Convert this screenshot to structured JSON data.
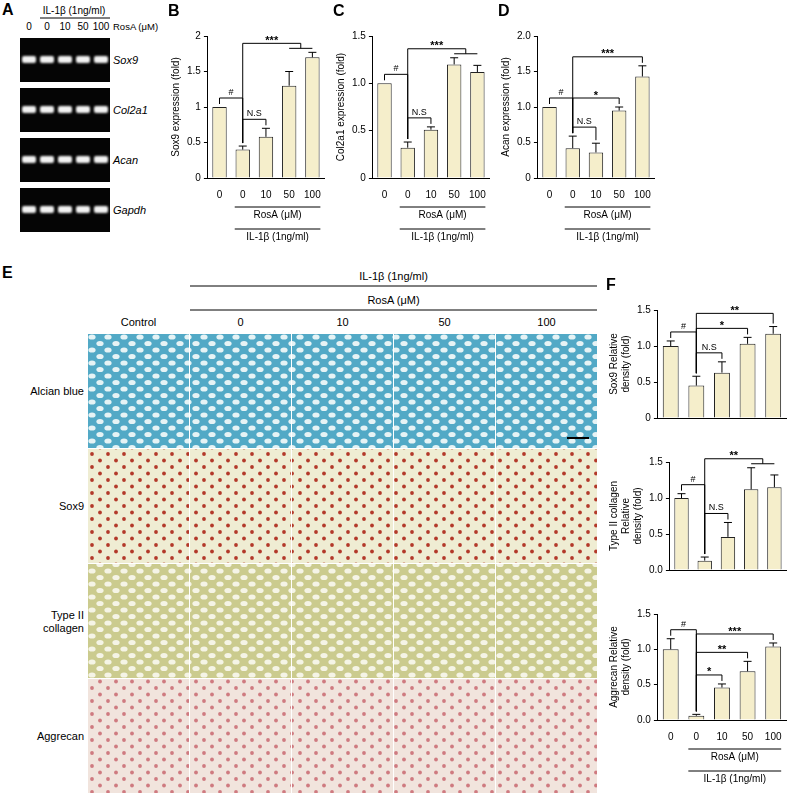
{
  "panels": {
    "A": {
      "label": "A",
      "top_label": "IL-1β (1ng/ml)",
      "axis_label": "RosA (μM)",
      "lanes": [
        "0",
        "0",
        "10",
        "50",
        "100"
      ],
      "genes": [
        "Sox9",
        "Col2a1",
        "Acan",
        "Gapdh"
      ]
    },
    "E": {
      "label": "E",
      "top_label": "IL-1β (1ng/ml)",
      "sub_label": "RosA (μM)",
      "columns": [
        "Control",
        "0",
        "10",
        "50",
        "100"
      ],
      "rows": [
        [
          "Alcian blue"
        ],
        [
          "Sox9"
        ],
        [
          "Type II",
          "collagen"
        ],
        [
          "Aggrecan"
        ]
      ]
    }
  },
  "chart_data": [
    {
      "type": "bar",
      "panel_label": "B",
      "ylabel": "Sox9 expression (fold)",
      "categories": [
        "0",
        "0",
        "10",
        "50",
        "100"
      ],
      "values": [
        1.0,
        0.4,
        0.58,
        1.3,
        1.7
      ],
      "errors": [
        0,
        0.05,
        0.12,
        0.2,
        0.07
      ],
      "color": "#f5eecb",
      "ylim": [
        0,
        2
      ],
      "yticks": [
        0,
        0.5,
        1,
        1.5,
        2
      ],
      "grid": false,
      "x_groups": [
        {
          "label": "RosA (μM)",
          "from": 1,
          "to": 4
        },
        {
          "label": "IL-1β (1ng/ml)",
          "from": 1,
          "to": 4
        }
      ],
      "annotations": [
        {
          "from": 0,
          "to": 1,
          "label": "#"
        },
        {
          "from": 1,
          "to": 2,
          "label": "N.S"
        },
        {
          "from": 1,
          "to": [
            3,
            4
          ],
          "label": "***"
        }
      ]
    },
    {
      "type": "bar",
      "panel_label": "C",
      "ylabel": "Col2a1 expression (fold)",
      "categories": [
        "0",
        "0",
        "10",
        "50",
        "100"
      ],
      "values": [
        1.0,
        0.32,
        0.51,
        1.2,
        1.12
      ],
      "errors": [
        0,
        0.06,
        0.03,
        0.07,
        0.07
      ],
      "color": "#f5eecb",
      "ylim": [
        0,
        1.5
      ],
      "yticks": [
        0,
        0.5,
        {
          "value": 1,
          "label": "1.0"
        },
        1.5
      ],
      "grid": false,
      "x_groups": [
        {
          "label": "RosA (μM)",
          "from": 1,
          "to": 4
        },
        {
          "label": "IL-1β (1ng/ml)",
          "from": 1,
          "to": 4
        }
      ],
      "annotations": [
        {
          "from": 0,
          "to": 1,
          "label": "#"
        },
        {
          "from": 1,
          "to": 2,
          "label": "N.S"
        },
        {
          "from": 1,
          "to": [
            3,
            4
          ],
          "label": "***"
        }
      ]
    },
    {
      "type": "bar",
      "panel_label": "D",
      "ylabel": "Acan expression (fold)",
      "categories": [
        "0",
        "0",
        "10",
        "50",
        "100"
      ],
      "values": [
        1.0,
        0.42,
        0.36,
        0.95,
        1.43
      ],
      "errors": [
        0,
        0.17,
        0.13,
        0.05,
        0.15
      ],
      "color": "#f5eecb",
      "ylim": [
        0,
        2
      ],
      "yticks": [
        0,
        0.5,
        {
          "value": 1,
          "label": "1.0"
        },
        1.5,
        {
          "value": 2,
          "label": "2.0"
        }
      ],
      "grid": false,
      "x_groups": [
        {
          "label": "RosA (μM)",
          "from": 1,
          "to": 4
        },
        {
          "label": "IL-1β (1ng/ml)",
          "from": 1,
          "to": 4
        }
      ],
      "annotations": [
        {
          "from": 0,
          "to": 1,
          "label": "#"
        },
        {
          "from": 1,
          "to": 2,
          "label": "N.S"
        },
        {
          "from": 1,
          "to": 3,
          "label": "*"
        },
        {
          "from": 1,
          "to": 4,
          "label": "***"
        }
      ]
    },
    {
      "type": "bar",
      "panel_label": "F",
      "ylabel": [
        "Sox9 Relative",
        "density (fold)"
      ],
      "categories": [
        "0",
        "0",
        "10",
        "50",
        "100"
      ],
      "values": [
        1.0,
        0.45,
        0.63,
        1.03,
        1.17
      ],
      "errors": [
        0.07,
        0.13,
        0.15,
        0.09,
        0.1
      ],
      "color": "#f5eecb",
      "ylim": [
        0,
        1.5
      ],
      "yticks": [
        0,
        0.5,
        {
          "value": 1,
          "label": "1.0"
        },
        1.5
      ],
      "grid": false,
      "tick_labels": "y",
      "annotations": [
        {
          "from": 0,
          "to": 1,
          "label": "#"
        },
        {
          "from": 1,
          "to": 2,
          "label": "N.S"
        },
        {
          "from": 1,
          "to": 3,
          "label": "*"
        },
        {
          "from": 1,
          "to": 4,
          "label": "**"
        }
      ]
    },
    {
      "type": "bar",
      "ylabel": [
        "Type II collagen",
        "Relative",
        "density (fold)"
      ],
      "categories": [
        "0",
        "0",
        "10",
        "50",
        "100"
      ],
      "values": [
        1.0,
        0.13,
        0.46,
        1.12,
        1.15
      ],
      "errors": [
        0.06,
        0.05,
        0.2,
        0.3,
        0.17
      ],
      "color": "#f5eecb",
      "ylim": [
        0,
        1.5
      ],
      "yticks": [
        {
          "value": 0,
          "label": "0.0"
        },
        0.5,
        {
          "value": 1,
          "label": "1.0"
        },
        1.5
      ],
      "grid": false,
      "tick_labels": "y",
      "annotations": [
        {
          "from": 0,
          "to": 1,
          "label": "#"
        },
        {
          "from": 1,
          "to": 2,
          "label": "N.S"
        },
        {
          "from": 1,
          "to": [
            3,
            4
          ],
          "label": "**"
        }
      ]
    },
    {
      "type": "bar",
      "ylabel": [
        "Aggrecan Relative",
        "density (fold)"
      ],
      "categories": [
        "0",
        "0",
        "10",
        "50",
        "100"
      ],
      "values": [
        1.0,
        0.06,
        0.46,
        0.69,
        1.04
      ],
      "errors": [
        0.15,
        0.02,
        0.05,
        0.14,
        0.05
      ],
      "color": "#f5eecb",
      "ylim": [
        0,
        1.5
      ],
      "yticks": [
        {
          "value": 0,
          "label": "0.0"
        },
        0.5,
        {
          "value": 1,
          "label": "1.0"
        },
        1.5
      ],
      "grid": false,
      "x_groups": [
        {
          "label": "RosA (μM)",
          "from": 1,
          "to": 4
        },
        {
          "label": "IL-1β (1ng/ml)",
          "from": 1,
          "to": 4
        }
      ],
      "annotations": [
        {
          "from": 0,
          "to": 1,
          "label": "#"
        },
        {
          "from": 1,
          "to": 2,
          "label": "*"
        },
        {
          "from": 1,
          "to": 3,
          "label": "**"
        },
        {
          "from": 1,
          "to": 4,
          "label": "***"
        }
      ]
    }
  ]
}
